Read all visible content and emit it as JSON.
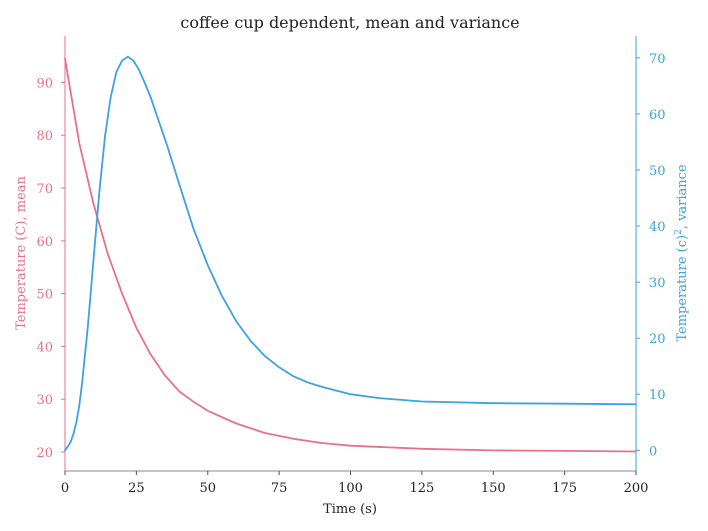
{
  "chart_data": {
    "type": "line",
    "title": "coffee cup dependent, mean and variance",
    "xlabel": "Time (s)",
    "xlim": [
      0,
      200
    ],
    "x_ticks": [
      0,
      25,
      50,
      75,
      100,
      125,
      150,
      175,
      200
    ],
    "grid": false,
    "y_left": {
      "label": "Temperature (C), mean",
      "ylim": [
        16.4,
        98.8
      ],
      "ticks": [
        20,
        30,
        40,
        50,
        60,
        70,
        80,
        90
      ],
      "color": "#e8718a"
    },
    "y_right": {
      "label_main": "Temperature (c)",
      "label_sup": "2",
      "label_tail": ", variance",
      "ylim": [
        -3.7,
        73.9
      ],
      "ticks": [
        0,
        10,
        20,
        30,
        40,
        50,
        60,
        70
      ],
      "color": "#3ca2e0"
    },
    "series": [
      {
        "axis": "left",
        "x": [
          0,
          5,
          10,
          15,
          20,
          25,
          30,
          35,
          40,
          45,
          50,
          60,
          70,
          80,
          90,
          100,
          125,
          150,
          175,
          200
        ],
        "values": [
          94.5,
          78.5,
          67.0,
          57.5,
          50.0,
          43.5,
          38.5,
          34.5,
          31.5,
          29.5,
          27.8,
          25.4,
          23.6,
          22.5,
          21.7,
          21.2,
          20.6,
          20.3,
          20.2,
          20.1
        ]
      },
      {
        "axis": "right",
        "x": [
          0,
          1,
          2,
          3,
          4,
          5,
          6,
          8,
          10,
          12,
          14,
          16,
          18,
          20,
          22,
          24,
          26,
          28,
          30,
          33,
          36,
          40,
          45,
          50,
          55,
          60,
          65,
          70,
          75,
          80,
          85,
          90,
          100,
          110,
          125,
          150,
          175,
          200
        ],
        "values": [
          0,
          0.7,
          1.5,
          3,
          5,
          8,
          12,
          22,
          34,
          46,
          56,
          63,
          67.5,
          69.5,
          70.2,
          69.5,
          67.8,
          65.5,
          63,
          58.5,
          54,
          47.5,
          39.5,
          33,
          27.5,
          23,
          19.5,
          16.8,
          14.8,
          13.2,
          12.1,
          11.3,
          10,
          9.3,
          8.7,
          8.4,
          8.3,
          8.2
        ]
      }
    ]
  }
}
